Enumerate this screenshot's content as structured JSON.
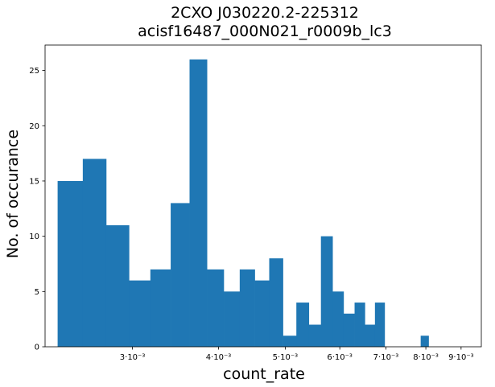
{
  "chart_data": {
    "type": "bar",
    "title_line1": "2CXO J030220.2-225312",
    "title_line2": "acisf16487_000N021_r0009b_lc3",
    "xlabel": "count_rate",
    "ylabel": "No. of occurance",
    "x_scale": "log",
    "xlim": [
      0.00224,
      0.00963
    ],
    "ylim": [
      0,
      27.3
    ],
    "y_ticks": [
      0,
      5,
      10,
      15,
      20,
      25
    ],
    "x_ticks": [
      {
        "value": 0.003,
        "label": "3·10⁻³"
      },
      {
        "value": 0.004,
        "label": "4·10⁻³"
      },
      {
        "value": 0.005,
        "label": "5·10⁻³"
      },
      {
        "value": 0.006,
        "label": "6·10⁻³"
      },
      {
        "value": 0.007,
        "label": "7·10⁻³"
      },
      {
        "value": 0.008,
        "label": "8·10⁻³"
      },
      {
        "value": 0.009,
        "label": "9·10⁻³"
      }
    ],
    "bins": [
      {
        "x0": 0.002336,
        "x1": 0.002541,
        "count": 15
      },
      {
        "x0": 0.002541,
        "x1": 0.002748,
        "count": 17
      },
      {
        "x0": 0.002748,
        "x1": 0.002966,
        "count": 11
      },
      {
        "x0": 0.002966,
        "x1": 0.003185,
        "count": 6
      },
      {
        "x0": 0.003185,
        "x1": 0.003409,
        "count": 7
      },
      {
        "x0": 0.003409,
        "x1": 0.003631,
        "count": 13
      },
      {
        "x0": 0.003631,
        "x1": 0.003849,
        "count": 26
      },
      {
        "x0": 0.003849,
        "x1": 0.004071,
        "count": 7
      },
      {
        "x0": 0.004071,
        "x1": 0.004294,
        "count": 5
      },
      {
        "x0": 0.004294,
        "x1": 0.004516,
        "count": 7
      },
      {
        "x0": 0.004516,
        "x1": 0.004739,
        "count": 6
      },
      {
        "x0": 0.004739,
        "x1": 0.004962,
        "count": 8
      },
      {
        "x0": 0.004962,
        "x1": 0.005189,
        "count": 1
      },
      {
        "x0": 0.005189,
        "x1": 0.005411,
        "count": 4
      },
      {
        "x0": 0.005411,
        "x1": 0.005633,
        "count": 2
      },
      {
        "x0": 0.005633,
        "x1": 0.005857,
        "count": 10
      },
      {
        "x0": 0.005857,
        "x1": 0.006077,
        "count": 5
      },
      {
        "x0": 0.006077,
        "x1": 0.006304,
        "count": 3
      },
      {
        "x0": 0.006304,
        "x1": 0.006525,
        "count": 4
      },
      {
        "x0": 0.006525,
        "x1": 0.006748,
        "count": 2
      },
      {
        "x0": 0.006748,
        "x1": 0.006971,
        "count": 4
      },
      {
        "x0": 0.006971,
        "x1": 0.007194,
        "count": 0
      },
      {
        "x0": 0.007194,
        "x1": 0.007416,
        "count": 0
      },
      {
        "x0": 0.007416,
        "x1": 0.007637,
        "count": 0
      },
      {
        "x0": 0.007637,
        "x1": 0.007863,
        "count": 0
      },
      {
        "x0": 0.007863,
        "x1": 0.008075,
        "count": 1
      }
    ],
    "colors": {
      "bar": "#1f77b4"
    },
    "grid": false,
    "legend": false
  }
}
